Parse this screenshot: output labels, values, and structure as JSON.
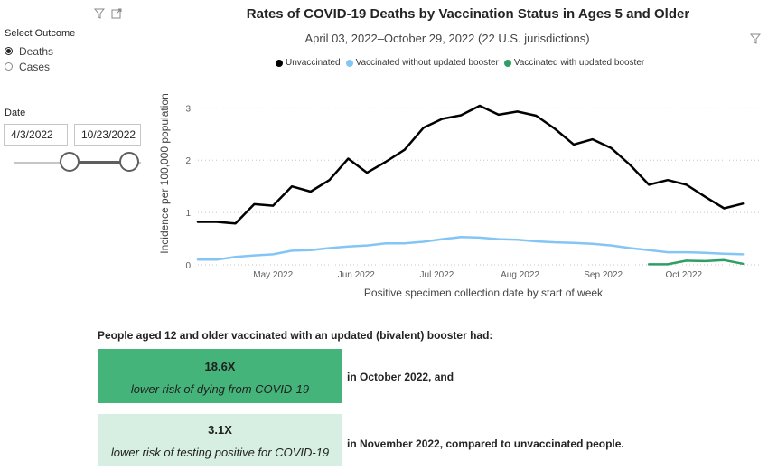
{
  "filters": {
    "outcome_label": "Select Outcome",
    "outcome_options": [
      {
        "label": "Deaths",
        "selected": true
      },
      {
        "label": "Cases",
        "selected": false
      }
    ],
    "date_label": "Date",
    "date_start": "4/3/2022",
    "date_end": "10/23/2022",
    "icons": [
      "filter-icon",
      "focus-mode-icon"
    ]
  },
  "visual_filter_icon": "filter-icon",
  "chart_data": {
    "type": "line",
    "title": "Rates of COVID-19 Deaths by Vaccination Status in Ages 5 and Older",
    "subtitle": "April 03, 2022–October 29, 2022 (22 U.S. jurisdictions)",
    "xlabel": "Positive specimen collection date by start of week",
    "ylabel": "Incidence per 100,000 population",
    "ylim": [
      0,
      3.3
    ],
    "yticks": [
      0,
      1,
      2,
      3
    ],
    "xlim": [
      "2022-04-03",
      "2022-10-29"
    ],
    "xticks": [
      {
        "date": "2022-05-01",
        "label": "May 2022"
      },
      {
        "date": "2022-06-01",
        "label": "Jun 2022"
      },
      {
        "date": "2022-07-01",
        "label": "Jul 2022"
      },
      {
        "date": "2022-08-01",
        "label": "Aug 2022"
      },
      {
        "date": "2022-09-01",
        "label": "Sep 2022"
      },
      {
        "date": "2022-10-01",
        "label": "Oct 2022"
      }
    ],
    "legend_position": "top-center",
    "grid": true,
    "series": [
      {
        "name": "Unvaccinated",
        "color": "#000000",
        "points": [
          [
            "2022-04-03",
            0.82
          ],
          [
            "2022-04-10",
            0.82
          ],
          [
            "2022-04-17",
            0.79
          ],
          [
            "2022-04-24",
            1.16
          ],
          [
            "2022-05-01",
            1.13
          ],
          [
            "2022-05-08",
            1.5
          ],
          [
            "2022-05-15",
            1.4
          ],
          [
            "2022-05-22",
            1.62
          ],
          [
            "2022-05-29",
            2.03
          ],
          [
            "2022-06-05",
            1.76
          ],
          [
            "2022-06-12",
            1.97
          ],
          [
            "2022-06-19",
            2.2
          ],
          [
            "2022-06-26",
            2.62
          ],
          [
            "2022-07-03",
            2.79
          ],
          [
            "2022-07-10",
            2.86
          ],
          [
            "2022-07-17",
            3.04
          ],
          [
            "2022-07-24",
            2.87
          ],
          [
            "2022-07-31",
            2.93
          ],
          [
            "2022-08-07",
            2.85
          ],
          [
            "2022-08-14",
            2.6
          ],
          [
            "2022-08-21",
            2.3
          ],
          [
            "2022-08-28",
            2.4
          ],
          [
            "2022-09-04",
            2.23
          ],
          [
            "2022-09-11",
            1.91
          ],
          [
            "2022-09-18",
            1.53
          ],
          [
            "2022-09-25",
            1.62
          ],
          [
            "2022-10-02",
            1.53
          ],
          [
            "2022-10-09",
            1.3
          ],
          [
            "2022-10-16",
            1.08
          ],
          [
            "2022-10-23",
            1.17
          ]
        ]
      },
      {
        "name": "Vaccinated without updated booster",
        "color": "#83c6f5",
        "points": [
          [
            "2022-04-03",
            0.1
          ],
          [
            "2022-04-10",
            0.1
          ],
          [
            "2022-04-17",
            0.15
          ],
          [
            "2022-04-24",
            0.18
          ],
          [
            "2022-05-01",
            0.2
          ],
          [
            "2022-05-08",
            0.27
          ],
          [
            "2022-05-15",
            0.28
          ],
          [
            "2022-05-22",
            0.32
          ],
          [
            "2022-05-29",
            0.35
          ],
          [
            "2022-06-05",
            0.37
          ],
          [
            "2022-06-12",
            0.41
          ],
          [
            "2022-06-19",
            0.41
          ],
          [
            "2022-06-26",
            0.44
          ],
          [
            "2022-07-03",
            0.49
          ],
          [
            "2022-07-10",
            0.53
          ],
          [
            "2022-07-17",
            0.52
          ],
          [
            "2022-07-24",
            0.49
          ],
          [
            "2022-07-31",
            0.48
          ],
          [
            "2022-08-07",
            0.45
          ],
          [
            "2022-08-14",
            0.43
          ],
          [
            "2022-08-21",
            0.42
          ],
          [
            "2022-08-28",
            0.4
          ],
          [
            "2022-09-04",
            0.37
          ],
          [
            "2022-09-11",
            0.32
          ],
          [
            "2022-09-18",
            0.28
          ],
          [
            "2022-09-25",
            0.24
          ],
          [
            "2022-10-02",
            0.24
          ],
          [
            "2022-10-09",
            0.23
          ],
          [
            "2022-10-16",
            0.21
          ],
          [
            "2022-10-23",
            0.2
          ]
        ]
      },
      {
        "name": "Vaccinated with updated booster",
        "color": "#2f9e63",
        "points": [
          [
            "2022-09-18",
            0.01
          ],
          [
            "2022-09-25",
            0.01
          ],
          [
            "2022-10-02",
            0.08
          ],
          [
            "2022-10-09",
            0.07
          ],
          [
            "2022-10-16",
            0.09
          ],
          [
            "2022-10-23",
            0.02
          ]
        ]
      }
    ]
  },
  "summary": {
    "heading": "People aged 12 and older vaccinated with an updated (bivalent) booster had:",
    "cards": [
      {
        "value": "18.6X",
        "text": "lower risk of dying from COVID-19",
        "after": "in October 2022, and",
        "bg": "#45b47a",
        "fg": "#1f1f1f"
      },
      {
        "value": "3.1X",
        "text": "lower risk of testing positive for COVID-19",
        "after": "in November 2022, compared to unvaccinated people.",
        "bg": "#d6efe2",
        "fg": "#1f1f1f"
      }
    ]
  }
}
